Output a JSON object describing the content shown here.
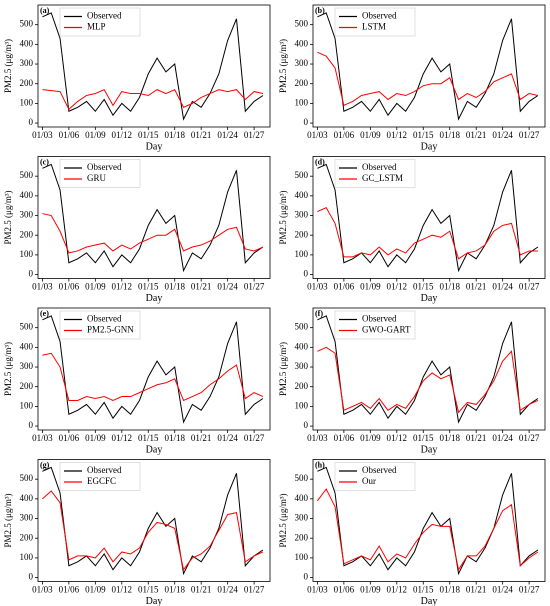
{
  "chart_data": [
    {
      "type": "line",
      "panel_label": "(a)",
      "xlabel": "Day",
      "ylabel": "PM2.5 (μg/m³)",
      "legend": "upper left",
      "x": [
        3,
        4,
        5,
        6,
        7,
        8,
        9,
        10,
        11,
        12,
        13,
        14,
        15,
        16,
        17,
        18,
        19,
        20,
        21,
        22,
        23,
        24,
        25,
        26,
        27,
        28
      ],
      "series": [
        {
          "name": "Observed",
          "color": "#000000",
          "values": [
            540,
            560,
            430,
            60,
            80,
            110,
            60,
            120,
            40,
            100,
            60,
            130,
            250,
            330,
            260,
            300,
            20,
            110,
            80,
            150,
            250,
            420,
            530,
            60,
            110,
            140
          ]
        },
        {
          "name": "MLP",
          "color": "#ff0000",
          "values": [
            170,
            165,
            160,
            70,
            110,
            140,
            150,
            170,
            90,
            160,
            150,
            150,
            140,
            170,
            150,
            170,
            80,
            100,
            130,
            150,
            170,
            160,
            170,
            120,
            160,
            150
          ]
        }
      ],
      "xlim": [
        2.5,
        28.8
      ],
      "ylim": [
        -20,
        600
      ],
      "xticks": [
        {
          "value": 3,
          "label": "01/03"
        },
        {
          "value": 6,
          "label": "01/06"
        },
        {
          "value": 9,
          "label": "01/09"
        },
        {
          "value": 12,
          "label": "01/12"
        },
        {
          "value": 15,
          "label": "01/15"
        },
        {
          "value": 18,
          "label": "01/18"
        },
        {
          "value": 21,
          "label": "01/21"
        },
        {
          "value": 24,
          "label": "01/24"
        },
        {
          "value": 27,
          "label": "01/27"
        }
      ],
      "yticks": [
        0,
        100,
        200,
        300,
        400,
        500
      ]
    },
    {
      "type": "line",
      "panel_label": "(b)",
      "xlabel": "Day",
      "ylabel": "PM2.5 (μg/m³)",
      "legend": "upper left",
      "x": [
        3,
        4,
        5,
        6,
        7,
        8,
        9,
        10,
        11,
        12,
        13,
        14,
        15,
        16,
        17,
        18,
        19,
        20,
        21,
        22,
        23,
        24,
        25,
        26,
        27,
        28
      ],
      "series": [
        {
          "name": "Observed",
          "color": "#000000",
          "values": [
            540,
            560,
            430,
            60,
            80,
            110,
            60,
            120,
            40,
            100,
            60,
            130,
            250,
            330,
            260,
            300,
            20,
            110,
            80,
            150,
            250,
            420,
            530,
            60,
            110,
            140
          ]
        },
        {
          "name": "LSTM",
          "color": "#ff0000",
          "values": [
            360,
            340,
            280,
            90,
            110,
            140,
            150,
            160,
            120,
            150,
            140,
            160,
            190,
            200,
            200,
            230,
            120,
            150,
            130,
            160,
            210,
            230,
            250,
            120,
            150,
            140
          ]
        }
      ],
      "xlim": [
        2.5,
        28.8
      ],
      "ylim": [
        -20,
        600
      ],
      "xticks": [
        {
          "value": 3,
          "label": "01/03"
        },
        {
          "value": 6,
          "label": "01/06"
        },
        {
          "value": 9,
          "label": "01/09"
        },
        {
          "value": 12,
          "label": "01/12"
        },
        {
          "value": 15,
          "label": "01/15"
        },
        {
          "value": 18,
          "label": "01/18"
        },
        {
          "value": 21,
          "label": "01/21"
        },
        {
          "value": 24,
          "label": "01/24"
        },
        {
          "value": 27,
          "label": "01/27"
        }
      ],
      "yticks": [
        0,
        100,
        200,
        300,
        400,
        500
      ]
    },
    {
      "type": "line",
      "panel_label": "(c)",
      "xlabel": "Day",
      "ylabel": "PM2.5 (μg/m³)",
      "legend": "upper left",
      "x": [
        3,
        4,
        5,
        6,
        7,
        8,
        9,
        10,
        11,
        12,
        13,
        14,
        15,
        16,
        17,
        18,
        19,
        20,
        21,
        22,
        23,
        24,
        25,
        26,
        27,
        28
      ],
      "series": [
        {
          "name": "Observed",
          "color": "#000000",
          "values": [
            540,
            560,
            430,
            60,
            80,
            110,
            60,
            120,
            40,
            100,
            60,
            130,
            250,
            330,
            260,
            300,
            20,
            110,
            80,
            150,
            250,
            420,
            530,
            60,
            110,
            140
          ]
        },
        {
          "name": "GRU",
          "color": "#ff0000",
          "values": [
            310,
            300,
            220,
            110,
            120,
            140,
            150,
            160,
            120,
            150,
            130,
            160,
            180,
            200,
            200,
            230,
            120,
            140,
            150,
            170,
            200,
            230,
            240,
            130,
            120,
            140
          ]
        }
      ],
      "xlim": [
        2.5,
        28.8
      ],
      "ylim": [
        -20,
        600
      ],
      "xticks": [
        {
          "value": 3,
          "label": "01/03"
        },
        {
          "value": 6,
          "label": "01/06"
        },
        {
          "value": 9,
          "label": "01/09"
        },
        {
          "value": 12,
          "label": "01/12"
        },
        {
          "value": 15,
          "label": "01/15"
        },
        {
          "value": 18,
          "label": "01/18"
        },
        {
          "value": 21,
          "label": "01/21"
        },
        {
          "value": 24,
          "label": "01/24"
        },
        {
          "value": 27,
          "label": "01/27"
        }
      ],
      "yticks": [
        0,
        100,
        200,
        300,
        400,
        500
      ]
    },
    {
      "type": "line",
      "panel_label": "(d)",
      "xlabel": "Day",
      "ylabel": "PM2.5 (μg/m³)",
      "legend": "upper left",
      "x": [
        3,
        4,
        5,
        6,
        7,
        8,
        9,
        10,
        11,
        12,
        13,
        14,
        15,
        16,
        17,
        18,
        19,
        20,
        21,
        22,
        23,
        24,
        25,
        26,
        27,
        28
      ],
      "series": [
        {
          "name": "Observed",
          "color": "#000000",
          "values": [
            540,
            560,
            430,
            60,
            80,
            110,
            60,
            120,
            40,
            100,
            60,
            130,
            250,
            330,
            260,
            300,
            20,
            110,
            80,
            150,
            250,
            420,
            530,
            60,
            110,
            140
          ]
        },
        {
          "name": "GC_LSTM",
          "color": "#ff0000",
          "values": [
            320,
            340,
            260,
            90,
            90,
            110,
            100,
            140,
            100,
            130,
            110,
            160,
            180,
            200,
            190,
            220,
            80,
            110,
            120,
            150,
            220,
            250,
            260,
            100,
            120,
            120
          ]
        }
      ],
      "xlim": [
        2.5,
        28.8
      ],
      "ylim": [
        -20,
        600
      ],
      "xticks": [
        {
          "value": 3,
          "label": "01/03"
        },
        {
          "value": 6,
          "label": "01/06"
        },
        {
          "value": 9,
          "label": "01/09"
        },
        {
          "value": 12,
          "label": "01/12"
        },
        {
          "value": 15,
          "label": "01/15"
        },
        {
          "value": 18,
          "label": "01/18"
        },
        {
          "value": 21,
          "label": "01/21"
        },
        {
          "value": 24,
          "label": "01/24"
        },
        {
          "value": 27,
          "label": "01/27"
        }
      ],
      "yticks": [
        0,
        100,
        200,
        300,
        400,
        500
      ]
    },
    {
      "type": "line",
      "panel_label": "(e)",
      "xlabel": "Day",
      "ylabel": "PM2.5 (μg/m³)",
      "legend": "upper left",
      "x": [
        3,
        4,
        5,
        6,
        7,
        8,
        9,
        10,
        11,
        12,
        13,
        14,
        15,
        16,
        17,
        18,
        19,
        20,
        21,
        22,
        23,
        24,
        25,
        26,
        27,
        28
      ],
      "series": [
        {
          "name": "Observed",
          "color": "#000000",
          "values": [
            540,
            560,
            430,
            60,
            80,
            110,
            60,
            120,
            40,
            100,
            60,
            130,
            250,
            330,
            260,
            300,
            20,
            110,
            80,
            150,
            250,
            420,
            530,
            60,
            110,
            140
          ]
        },
        {
          "name": "PM2.5-GNN",
          "color": "#ff0000",
          "values": [
            360,
            370,
            300,
            130,
            130,
            150,
            140,
            150,
            130,
            150,
            150,
            170,
            190,
            210,
            220,
            240,
            130,
            150,
            170,
            210,
            240,
            280,
            310,
            140,
            170,
            150
          ]
        }
      ],
      "xlim": [
        2.5,
        28.8
      ],
      "ylim": [
        -20,
        600
      ],
      "xticks": [
        {
          "value": 3,
          "label": "01/03"
        },
        {
          "value": 6,
          "label": "01/06"
        },
        {
          "value": 9,
          "label": "01/09"
        },
        {
          "value": 12,
          "label": "01/12"
        },
        {
          "value": 15,
          "label": "01/15"
        },
        {
          "value": 18,
          "label": "01/18"
        },
        {
          "value": 21,
          "label": "01/21"
        },
        {
          "value": 24,
          "label": "01/24"
        },
        {
          "value": 27,
          "label": "01/27"
        }
      ],
      "yticks": [
        0,
        100,
        200,
        300,
        400,
        500
      ]
    },
    {
      "type": "line",
      "panel_label": "(f)",
      "xlabel": "Day",
      "ylabel": "PM2.5 (μg/m³)",
      "legend": "upper left",
      "x": [
        3,
        4,
        5,
        6,
        7,
        8,
        9,
        10,
        11,
        12,
        13,
        14,
        15,
        16,
        17,
        18,
        19,
        20,
        21,
        22,
        23,
        24,
        25,
        26,
        27,
        28
      ],
      "series": [
        {
          "name": "Observed",
          "color": "#000000",
          "values": [
            540,
            560,
            430,
            60,
            80,
            110,
            60,
            120,
            40,
            100,
            60,
            130,
            250,
            330,
            260,
            300,
            20,
            110,
            80,
            150,
            250,
            420,
            530,
            60,
            110,
            140
          ]
        },
        {
          "name": "GWO-GART",
          "color": "#ff0000",
          "values": [
            380,
            400,
            370,
            80,
            100,
            120,
            90,
            140,
            80,
            110,
            90,
            150,
            230,
            270,
            240,
            260,
            70,
            120,
            110,
            160,
            230,
            330,
            380,
            80,
            110,
            130
          ]
        }
      ],
      "xlim": [
        2.5,
        28.8
      ],
      "ylim": [
        -20,
        600
      ],
      "xticks": [
        {
          "value": 3,
          "label": "01/03"
        },
        {
          "value": 6,
          "label": "01/06"
        },
        {
          "value": 9,
          "label": "01/09"
        },
        {
          "value": 12,
          "label": "01/12"
        },
        {
          "value": 15,
          "label": "01/15"
        },
        {
          "value": 18,
          "label": "01/18"
        },
        {
          "value": 21,
          "label": "01/21"
        },
        {
          "value": 24,
          "label": "01/24"
        },
        {
          "value": 27,
          "label": "01/27"
        }
      ],
      "yticks": [
        0,
        100,
        200,
        300,
        400,
        500
      ]
    },
    {
      "type": "line",
      "panel_label": "(g)",
      "xlabel": "Day",
      "ylabel": "PM2.5 (μg/m³)",
      "legend": "upper left",
      "x": [
        3,
        4,
        5,
        6,
        7,
        8,
        9,
        10,
        11,
        12,
        13,
        14,
        15,
        16,
        17,
        18,
        19,
        20,
        21,
        22,
        23,
        24,
        25,
        26,
        27,
        28
      ],
      "series": [
        {
          "name": "Observed",
          "color": "#000000",
          "values": [
            540,
            560,
            430,
            60,
            80,
            110,
            60,
            120,
            40,
            100,
            60,
            130,
            250,
            330,
            260,
            300,
            20,
            110,
            80,
            150,
            250,
            420,
            530,
            60,
            110,
            140
          ]
        },
        {
          "name": "EGCFC",
          "color": "#ff0000",
          "values": [
            400,
            440,
            380,
            90,
            110,
            110,
            100,
            150,
            80,
            130,
            120,
            150,
            230,
            280,
            270,
            250,
            40,
            100,
            120,
            160,
            240,
            320,
            330,
            80,
            110,
            130
          ]
        }
      ],
      "xlim": [
        2.5,
        28.8
      ],
      "ylim": [
        -20,
        600
      ],
      "xticks": [
        {
          "value": 3,
          "label": "01/03"
        },
        {
          "value": 6,
          "label": "01/06"
        },
        {
          "value": 9,
          "label": "01/09"
        },
        {
          "value": 12,
          "label": "01/12"
        },
        {
          "value": 15,
          "label": "01/15"
        },
        {
          "value": 18,
          "label": "01/18"
        },
        {
          "value": 21,
          "label": "01/21"
        },
        {
          "value": 24,
          "label": "01/24"
        },
        {
          "value": 27,
          "label": "01/27"
        }
      ],
      "yticks": [
        0,
        100,
        200,
        300,
        400,
        500
      ]
    },
    {
      "type": "line",
      "panel_label": "(h)",
      "xlabel": "Day",
      "ylabel": "PM2.5 (μg/m³)",
      "legend": "upper left",
      "x": [
        3,
        4,
        5,
        6,
        7,
        8,
        9,
        10,
        11,
        12,
        13,
        14,
        15,
        16,
        17,
        18,
        19,
        20,
        21,
        22,
        23,
        24,
        25,
        26,
        27,
        28
      ],
      "series": [
        {
          "name": "Observed",
          "color": "#000000",
          "values": [
            540,
            560,
            430,
            60,
            80,
            110,
            60,
            120,
            40,
            100,
            60,
            130,
            250,
            330,
            260,
            300,
            20,
            110,
            80,
            150,
            250,
            420,
            530,
            60,
            110,
            140
          ]
        },
        {
          "name": "Our",
          "color": "#ff0000",
          "values": [
            390,
            450,
            360,
            70,
            90,
            110,
            90,
            160,
            80,
            120,
            100,
            170,
            230,
            270,
            260,
            260,
            40,
            110,
            110,
            160,
            250,
            340,
            370,
            60,
            100,
            130
          ]
        }
      ],
      "xlim": [
        2.5,
        28.8
      ],
      "ylim": [
        -20,
        600
      ],
      "xticks": [
        {
          "value": 3,
          "label": "01/03"
        },
        {
          "value": 6,
          "label": "01/06"
        },
        {
          "value": 9,
          "label": "01/09"
        },
        {
          "value": 12,
          "label": "01/12"
        },
        {
          "value": 15,
          "label": "01/15"
        },
        {
          "value": 18,
          "label": "01/18"
        },
        {
          "value": 21,
          "label": "01/21"
        },
        {
          "value": 24,
          "label": "01/24"
        },
        {
          "value": 27,
          "label": "01/27"
        }
      ],
      "yticks": [
        0,
        100,
        200,
        300,
        400,
        500
      ]
    }
  ]
}
